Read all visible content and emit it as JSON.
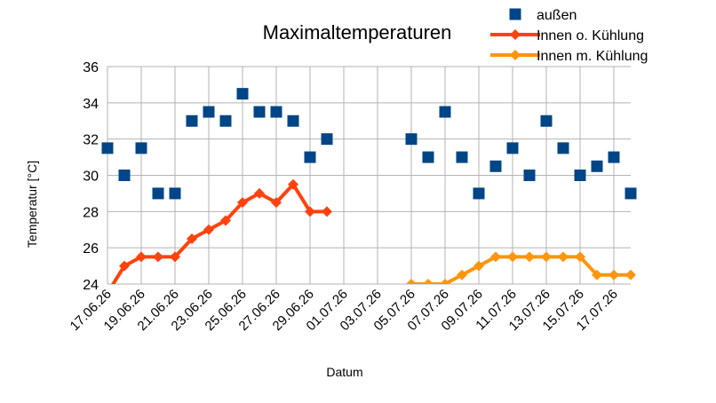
{
  "chart_data": {
    "type": "line",
    "title": "Maximaltemperaturen",
    "xlabel": "Datum",
    "ylabel": "Temperatur [°C]",
    "ylim": [
      24,
      36
    ],
    "yticks": [
      24,
      26,
      28,
      30,
      32,
      34,
      36
    ],
    "grid": true,
    "legend_position": "top-right",
    "x": [
      "17.06.26",
      "18.06.26",
      "19.06.26",
      "20.06.26",
      "21.06.26",
      "22.06.26",
      "23.06.26",
      "24.06.26",
      "25.06.26",
      "26.06.26",
      "27.06.26",
      "28.06.26",
      "29.06.26",
      "30.06.26",
      "01.07.26",
      "02.07.26",
      "03.07.26",
      "04.07.26",
      "05.07.26",
      "06.07.26",
      "07.07.26",
      "08.07.26",
      "09.07.26",
      "10.07.26",
      "11.07.26",
      "12.07.26",
      "13.07.26",
      "14.07.26",
      "15.07.26",
      "16.07.26",
      "17.07.26",
      "18.07.26"
    ],
    "xtick_labels": [
      "17.06.26",
      "19.06.26",
      "21.06.26",
      "23.06.26",
      "25.06.26",
      "27.06.26",
      "29.06.26",
      "01.07.26",
      "03.07.26",
      "05.07.26",
      "07.07.26",
      "09.07.26",
      "11.07.26",
      "13.07.26",
      "15.07.26",
      "17.07.26"
    ],
    "series": [
      {
        "name": "außen",
        "style": "markers",
        "marker": "square",
        "color": "#004586",
        "values": [
          31.5,
          30,
          31.5,
          29,
          29,
          33,
          33.5,
          33,
          34.5,
          33.5,
          33.5,
          33,
          31,
          32,
          null,
          null,
          null,
          null,
          32,
          31,
          33.5,
          31,
          29,
          30.5,
          31.5,
          30,
          33,
          31.5,
          30,
          30.5,
          31,
          29
        ]
      },
      {
        "name": "Innen o. Kühlung",
        "style": "line",
        "marker": "diamond",
        "color": "#ff420e",
        "values": [
          23.5,
          25,
          25.5,
          25.5,
          25.5,
          26.5,
          27,
          27.5,
          28.5,
          29,
          28.5,
          29.5,
          28,
          28,
          null,
          null,
          null,
          null,
          null,
          null,
          null,
          null,
          null,
          null,
          null,
          null,
          null,
          null,
          null,
          null,
          null,
          null
        ]
      },
      {
        "name": "Innen m. Kühlung",
        "style": "line",
        "marker": "diamond",
        "color": "#ff950e",
        "values": [
          null,
          null,
          null,
          null,
          null,
          null,
          null,
          null,
          null,
          null,
          null,
          null,
          null,
          null,
          null,
          null,
          null,
          null,
          24,
          24,
          24,
          24.5,
          25,
          25.5,
          25.5,
          25.5,
          25.5,
          25.5,
          25.5,
          24.5,
          24.5,
          24.5
        ]
      }
    ]
  }
}
